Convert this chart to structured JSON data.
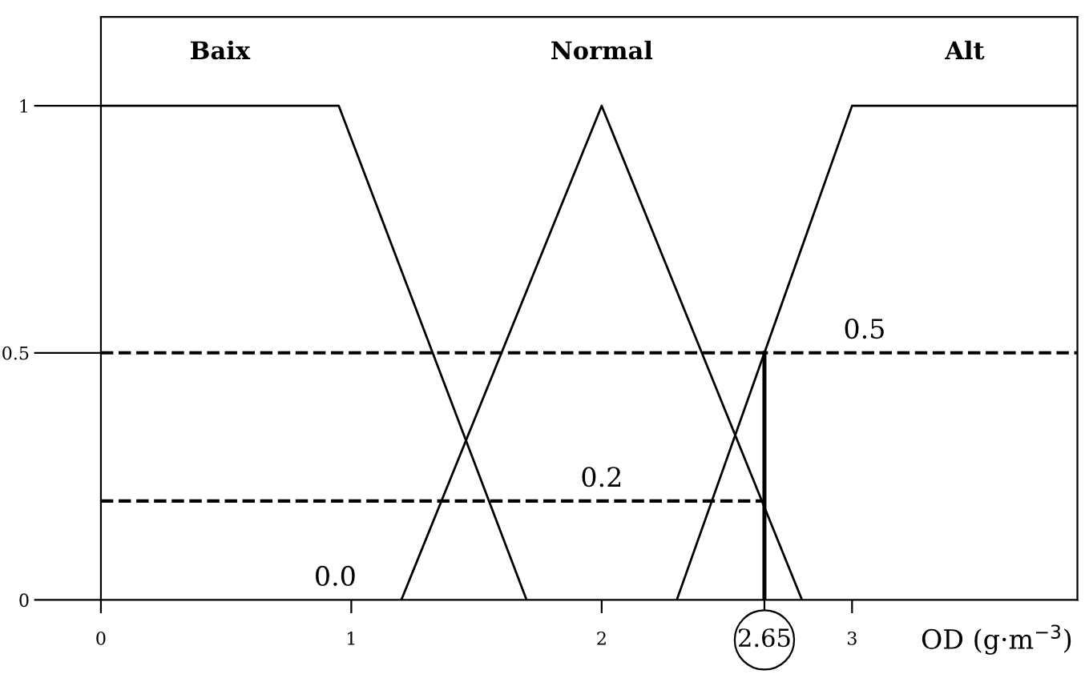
{
  "chart_data": {
    "type": "line",
    "xlabel": "OD (g·m$^{−3}$)",
    "xlim": [
      0,
      3.9
    ],
    "ylim": [
      0,
      1.18
    ],
    "xticks": [
      0,
      1,
      2,
      {
        "value": 2.65,
        "label": "2.65"
      },
      3
    ],
    "yticks": [
      0,
      0.5,
      1
    ],
    "grid": false,
    "legend": false,
    "marker": "none",
    "series": [
      {
        "name": "Baix",
        "color": "#000000",
        "x": [
          0,
          0.95,
          1.7
        ],
        "values": [
          1,
          1,
          0
        ]
      },
      {
        "name": "Normal",
        "color": "#000000",
        "x": [
          1.2,
          2.0,
          2.8
        ],
        "values": [
          0,
          1,
          0
        ]
      },
      {
        "name": "Alt",
        "color": "#000000",
        "x": [
          2.3,
          3.0,
          3.9
        ],
        "values": [
          0,
          1,
          1
        ]
      },
      {
        "color": "#000000",
        "x": [
          0,
          3.9
        ],
        "values": [
          0.5,
          0.5
        ],
        "line_style": "dashed"
      },
      {
        "color": "#000000",
        "x": [
          0,
          2.65
        ],
        "values": [
          0.2,
          0.2
        ],
        "line_style": "dashed"
      },
      {
        "color": "#000000",
        "x": [
          2.65,
          2.65
        ],
        "values": [
          0,
          0.5
        ],
        "line_style": "solid"
      }
    ],
    "annotations": [
      {
        "text": "0.5",
        "x": 3.05,
        "y": 0.5
      },
      {
        "text": "0.2",
        "x": 2.0,
        "y": 0.2
      },
      "0.0"
    ]
  }
}
